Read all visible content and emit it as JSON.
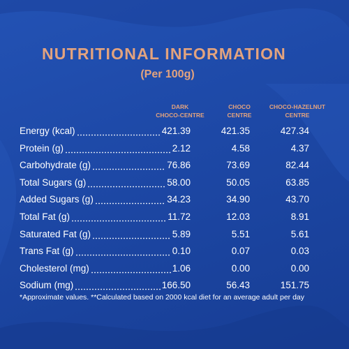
{
  "title": "NUTRITIONAL INFORMATION",
  "subtitle": "(Per 100g)",
  "columns": [
    [
      "DARK",
      "CHOCO-CENTRE"
    ],
    [
      "CHOCO",
      "CENTRE"
    ],
    [
      "CHOCO-HAZELNUT",
      "CENTRE"
    ]
  ],
  "table": {
    "rows": [
      {
        "label": "Energy (kcal)",
        "values": [
          "421.39",
          "421.35",
          "427.34"
        ]
      },
      {
        "label": "Protein (g)",
        "values": [
          "2.12",
          "4.58",
          "4.37"
        ]
      },
      {
        "label": "Carbohydrate (g)",
        "values": [
          "76.86",
          "73.69",
          "82.44"
        ]
      },
      {
        "label": "Total Sugars (g)",
        "values": [
          "58.00",
          "50.05",
          "63.85"
        ]
      },
      {
        "label": "Added Sugars (g)",
        "values": [
          "34.23",
          "34.90",
          "43.70"
        ]
      },
      {
        "label": "Total Fat (g)",
        "values": [
          "11.72",
          "12.03",
          "8.91"
        ]
      },
      {
        "label": "Saturated Fat (g)",
        "values": [
          "5.89",
          "5.51",
          "5.61"
        ]
      },
      {
        "label": "Trans Fat (g)",
        "values": [
          "0.10",
          "0.07",
          "0.03"
        ]
      },
      {
        "label": "Cholesterol (mg)",
        "values": [
          "1.06",
          "0.00",
          "0.00"
        ]
      },
      {
        "label": "Sodium (mg)",
        "values": [
          "166.50",
          "56.43",
          "151.75"
        ]
      }
    ]
  },
  "footnote": "*Approximate values. **Calculated based on 2000 kcal diet for an average adult per day"
}
